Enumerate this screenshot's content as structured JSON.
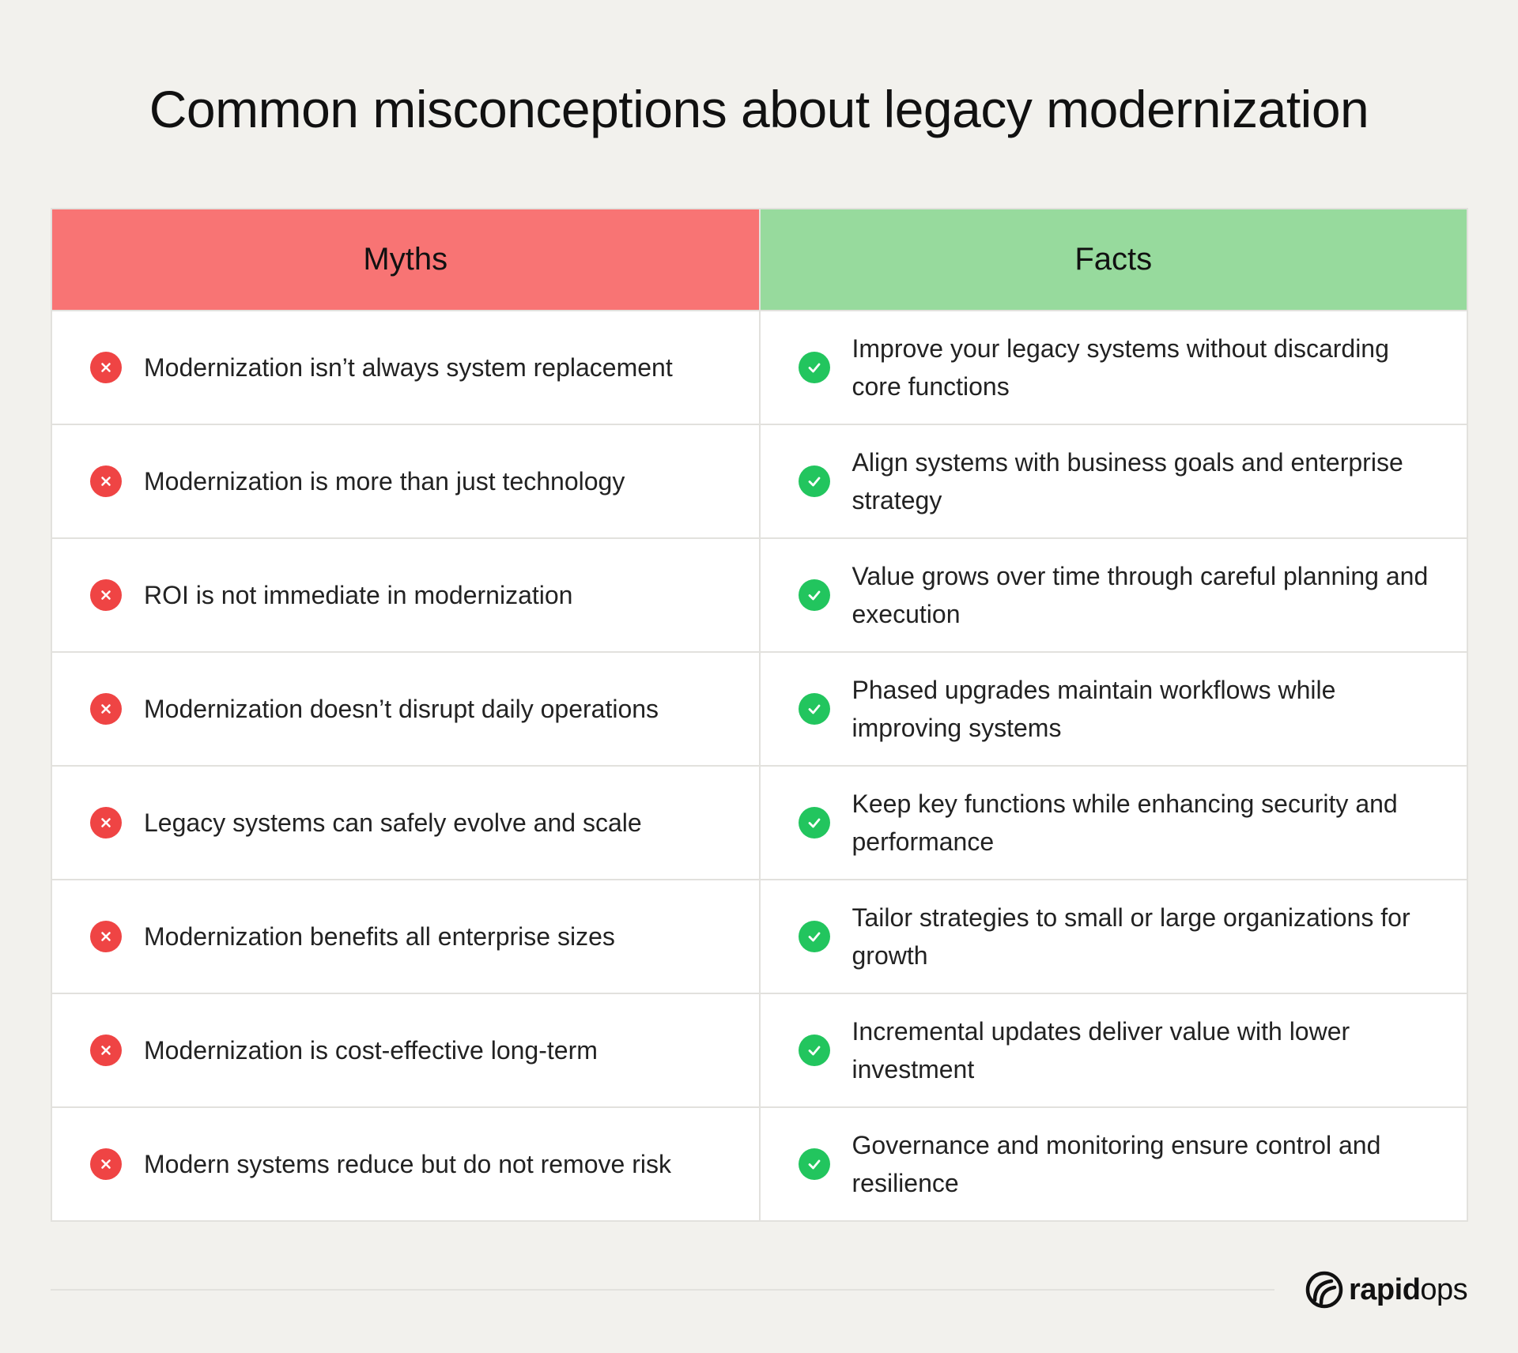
{
  "title": "Common misconceptions about legacy modernization",
  "table": {
    "headers": {
      "myths": "Myths",
      "facts": "Facts"
    },
    "rows": [
      {
        "myth": "Modernization isn’t always system replacement",
        "fact": "Improve your legacy systems without discarding core functions"
      },
      {
        "myth": "Modernization is more than just technology",
        "fact": "Align systems with business goals and enterprise strategy"
      },
      {
        "myth": "ROI is not immediate in modernization",
        "fact": "Value grows over time through careful planning and execution"
      },
      {
        "myth": "Modernization doesn’t disrupt daily operations",
        "fact": "Phased upgrades maintain workflows while improving systems"
      },
      {
        "myth": "Legacy systems can safely evolve and scale",
        "fact": "Keep key functions while enhancing security and performance"
      },
      {
        "myth": "Modernization benefits all enterprise sizes",
        "fact": "Tailor strategies to small or large organizations for growth"
      },
      {
        "myth": "Modernization is cost-effective long-term",
        "fact": "Incremental updates deliver value with lower investment"
      },
      {
        "myth": "Modern systems reduce but do not remove risk",
        "fact": "Governance and monitoring ensure control and resilience"
      }
    ]
  },
  "icons": {
    "myth": "x-circle-icon",
    "fact": "check-circle-icon"
  },
  "colors": {
    "background": "#f2f1ed",
    "myths_header": "#f87474",
    "facts_header": "#97da9d",
    "x_icon": "#ef4444",
    "check_icon": "#22c55e"
  },
  "logo": {
    "part1": "rapid",
    "part2": "ops"
  }
}
